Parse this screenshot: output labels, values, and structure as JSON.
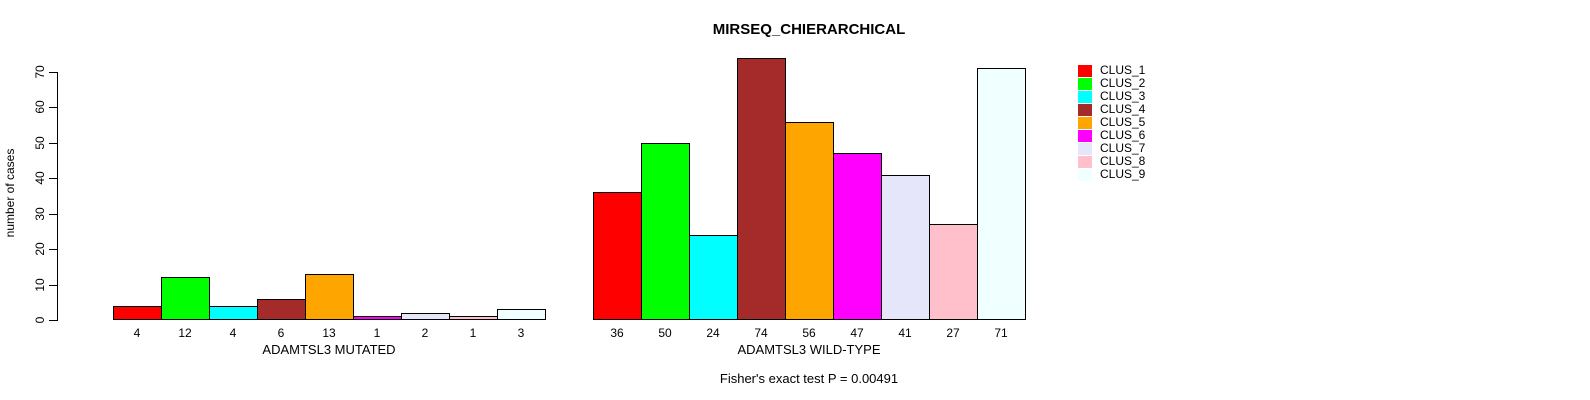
{
  "chart_data": {
    "type": "bar",
    "title": "MIRSEQ_CHIERARCHICAL",
    "ylabel": "number of cases",
    "xlabel": "",
    "annotation": "Fisher's exact test P = 0.00491",
    "categories": [
      "ADAMTSL3 MUTATED",
      "ADAMTSL3 WILD-TYPE"
    ],
    "series": [
      {
        "name": "CLUS_1",
        "color": "#FF0000",
        "values": [
          4,
          36
        ]
      },
      {
        "name": "CLUS_2",
        "color": "#00FF00",
        "values": [
          12,
          50
        ]
      },
      {
        "name": "CLUS_3",
        "color": "#00FFFF",
        "values": [
          4,
          24
        ]
      },
      {
        "name": "CLUS_4",
        "color": "#A52A2A",
        "values": [
          6,
          74
        ]
      },
      {
        "name": "CLUS_5",
        "color": "#FFA500",
        "values": [
          13,
          56
        ]
      },
      {
        "name": "CLUS_6",
        "color": "#FF00FF",
        "values": [
          1,
          47
        ]
      },
      {
        "name": "CLUS_7",
        "color": "#E6E6FA",
        "values": [
          2,
          41
        ]
      },
      {
        "name": "CLUS_8",
        "color": "#FFC0CB",
        "values": [
          1,
          27
        ]
      },
      {
        "name": "CLUS_9",
        "color": "#F0FFFF",
        "values": [
          3,
          71
        ]
      }
    ],
    "yticks": [
      0,
      10,
      20,
      30,
      40,
      50,
      60,
      70
    ],
    "ylim": [
      0,
      74
    ],
    "bar_value_labels_shown": true,
    "legend_position": "top-right",
    "grid": false
  }
}
